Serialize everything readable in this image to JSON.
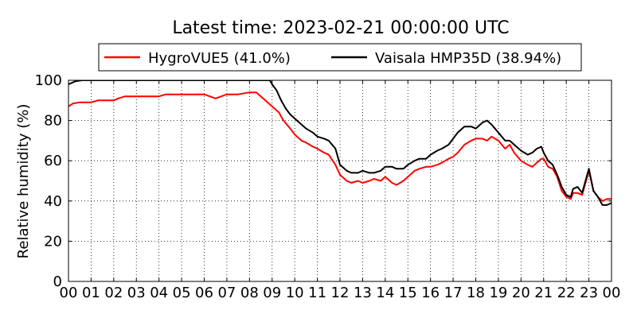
{
  "chart_data": {
    "type": "line",
    "title": "Latest time: 2023-02-21 00:00:00 UTC",
    "xlabel": "",
    "ylabel": "Relative humidity (%)",
    "ylim": [
      0,
      100
    ],
    "xlim": [
      0,
      24
    ],
    "grid": true,
    "legend_position": "top",
    "x_tick_labels": [
      "00",
      "01",
      "02",
      "03",
      "04",
      "05",
      "06",
      "07",
      "08",
      "09",
      "10",
      "11",
      "12",
      "13",
      "14",
      "15",
      "16",
      "17",
      "18",
      "19",
      "20",
      "21",
      "22",
      "23",
      "00"
    ],
    "y_tick_labels": [
      "0",
      "20",
      "40",
      "60",
      "80",
      "100"
    ],
    "y_ticks": [
      0,
      20,
      40,
      60,
      80,
      100
    ],
    "series": [
      {
        "name": "HygroVUE5 (41.0%)",
        "color": "#ff0000",
        "x": [
          0,
          0.2,
          0.5,
          1.0,
          1.3,
          1.5,
          2.0,
          2.2,
          2.5,
          2.7,
          3.0,
          3.5,
          4.0,
          4.3,
          5.0,
          5.5,
          6.0,
          6.5,
          7.0,
          7.5,
          8.0,
          8.3,
          8.7,
          9.0,
          9.3,
          9.5,
          9.8,
          10.0,
          10.3,
          10.5,
          10.8,
          11.0,
          11.3,
          11.5,
          11.8,
          12.0,
          12.3,
          12.5,
          12.8,
          13.0,
          13.3,
          13.5,
          13.8,
          14.0,
          14.3,
          14.5,
          14.8,
          15.0,
          15.3,
          15.5,
          15.8,
          16.0,
          16.3,
          16.5,
          16.8,
          17.0,
          17.2,
          17.5,
          17.8,
          18.0,
          18.3,
          18.5,
          18.7,
          19.0,
          19.3,
          19.5,
          19.7,
          20.0,
          20.3,
          20.5,
          20.7,
          20.9,
          21.0,
          21.2,
          21.4,
          21.6,
          21.8,
          22.0,
          22.2,
          22.3,
          22.5,
          22.7,
          22.8,
          23.0,
          23.2,
          23.4,
          23.6,
          23.8,
          24.0
        ],
        "y": [
          87,
          88.5,
          89,
          89,
          90,
          90,
          90,
          91,
          92,
          92,
          92,
          92,
          92,
          93,
          93,
          93,
          93,
          91,
          93,
          93,
          94,
          94,
          90,
          87,
          84,
          80,
          76,
          73,
          70,
          69,
          67,
          66,
          64,
          63,
          58,
          53,
          50,
          49,
          50,
          49,
          50,
          51,
          50,
          52,
          49,
          48,
          50,
          52,
          55,
          56,
          57,
          57,
          58,
          59,
          61,
          62,
          64,
          68,
          70,
          71,
          71,
          70,
          72,
          70,
          66,
          68,
          64,
          60,
          58,
          57,
          59,
          61,
          61,
          57,
          56,
          52,
          45,
          42,
          41,
          44,
          44,
          43,
          47,
          55,
          45,
          42,
          40,
          41,
          41
        ]
      },
      {
        "name": "Vaisala HMP35D (38.94%)",
        "color": "#000000",
        "x": [
          0,
          0.3,
          0.6,
          8.9,
          9.0,
          9.2,
          9.4,
          9.6,
          9.8,
          10.0,
          10.3,
          10.5,
          10.8,
          11.0,
          11.3,
          11.5,
          11.8,
          12.0,
          12.3,
          12.5,
          12.8,
          13.0,
          13.3,
          13.5,
          13.8,
          14.0,
          14.3,
          14.5,
          14.8,
          15.0,
          15.3,
          15.5,
          15.8,
          16.0,
          16.3,
          16.5,
          16.8,
          17.0,
          17.2,
          17.5,
          17.8,
          18.0,
          18.3,
          18.5,
          18.7,
          19.0,
          19.3,
          19.5,
          19.7,
          20.0,
          20.3,
          20.5,
          20.7,
          20.9,
          21.0,
          21.2,
          21.4,
          21.6,
          21.8,
          22.0,
          22.2,
          22.3,
          22.5,
          22.7,
          22.8,
          23.0,
          23.2,
          23.4,
          23.6,
          23.8,
          24.0
        ],
        "y": [
          98,
          99.5,
          100,
          100,
          98,
          95,
          90,
          86,
          83,
          81,
          78,
          76,
          74,
          72,
          71,
          70,
          66,
          58,
          55,
          54,
          54,
          55,
          54,
          54,
          55,
          57,
          57,
          56,
          56,
          58,
          60,
          61,
          61,
          63,
          65,
          66,
          68,
          71,
          74,
          77,
          77,
          76,
          79,
          80,
          78,
          74,
          70,
          70,
          68,
          65,
          63,
          64,
          66,
          67,
          64,
          60,
          58,
          53,
          47,
          43,
          42,
          46,
          47,
          44,
          48,
          56,
          45,
          42,
          38,
          38,
          39
        ]
      }
    ]
  }
}
